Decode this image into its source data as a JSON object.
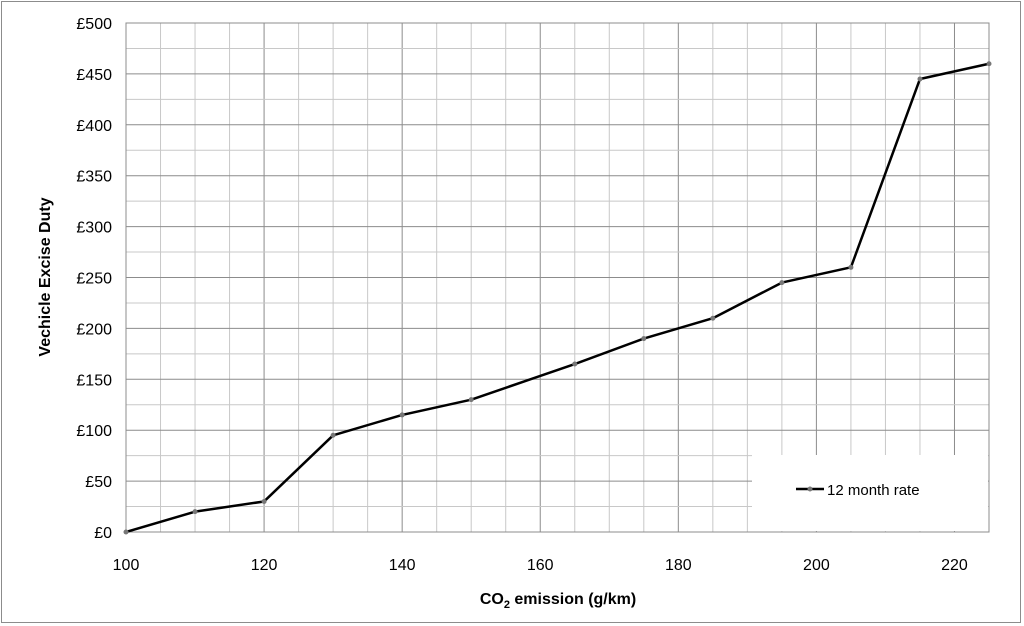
{
  "chart_data": {
    "type": "line",
    "xlabel_main": "CO",
    "xlabel_sub": "2",
    "xlabel_rest": " emission (g/km)",
    "ylabel": "Vechicle Excise Duty",
    "xlim": [
      100,
      225
    ],
    "ylim": [
      0,
      500
    ],
    "x_ticks": [
      100,
      120,
      140,
      160,
      180,
      200,
      220
    ],
    "x_tick_labels": [
      "100",
      "120",
      "140",
      "160",
      "180",
      "200",
      "220"
    ],
    "y_ticks": [
      0,
      50,
      100,
      150,
      200,
      250,
      300,
      350,
      400,
      450,
      500
    ],
    "y_tick_labels": [
      "£0",
      "£50",
      "£100",
      "£150",
      "£200",
      "£250",
      "£300",
      "£350",
      "£400",
      "£450",
      "£500"
    ],
    "grid": true,
    "legend_position": "bottom-right",
    "series": [
      {
        "name": "12 month rate",
        "color": "#000000",
        "x": [
          100,
          110,
          120,
          130,
          140,
          150,
          165,
          175,
          185,
          195,
          205,
          215,
          225
        ],
        "values": [
          0,
          20,
          30,
          95,
          115,
          130,
          165,
          190,
          210,
          245,
          260,
          445,
          460
        ]
      }
    ]
  }
}
